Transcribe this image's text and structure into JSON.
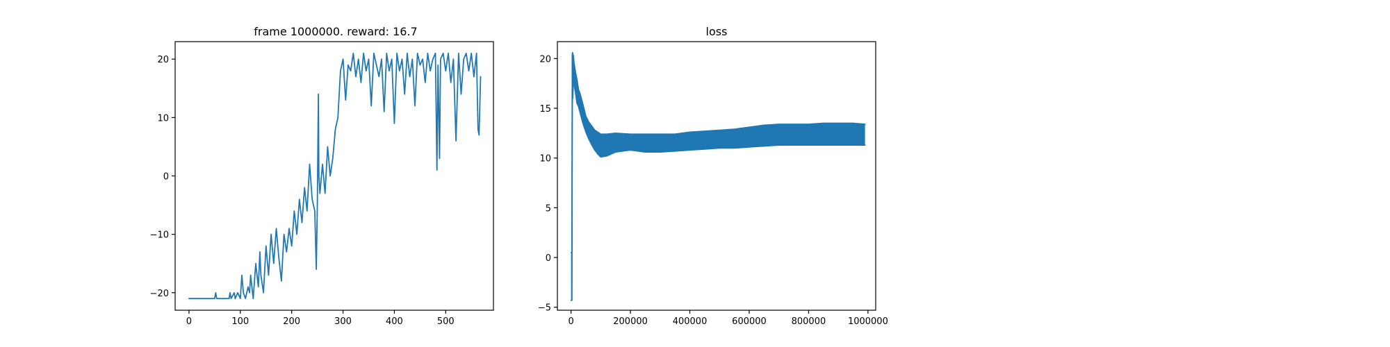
{
  "chart_data": [
    {
      "type": "line",
      "title": "frame 1000000. reward: 16.7",
      "xlabel": "",
      "ylabel": "",
      "xlim": [
        -27,
        593
      ],
      "ylim": [
        -23,
        23
      ],
      "xticks": [
        0,
        100,
        200,
        300,
        400,
        500
      ],
      "yticks": [
        -20,
        -10,
        0,
        10,
        20
      ],
      "grid": false,
      "color": "#1f77b4",
      "series": [
        {
          "x": [
            0,
            10,
            20,
            30,
            40,
            50,
            52,
            54,
            60,
            70,
            78,
            80,
            82,
            88,
            90,
            95,
            100,
            103,
            106,
            110,
            115,
            118,
            120,
            125,
            130,
            135,
            138,
            140,
            145,
            150,
            155,
            160,
            165,
            170,
            175,
            180,
            185,
            190,
            195,
            200,
            205,
            210,
            215,
            220,
            225,
            230,
            235,
            240,
            245,
            248,
            250,
            252,
            253,
            255,
            260,
            265,
            270,
            275,
            280,
            285,
            290,
            295,
            300,
            305,
            310,
            315,
            320,
            325,
            330,
            335,
            340,
            345,
            350,
            355,
            360,
            365,
            370,
            375,
            380,
            385,
            390,
            395,
            400,
            405,
            410,
            415,
            420,
            425,
            430,
            435,
            440,
            445,
            450,
            455,
            460,
            465,
            470,
            475,
            480,
            483,
            485,
            488,
            490,
            495,
            500,
            505,
            510,
            515,
            520,
            525,
            530,
            535,
            540,
            545,
            550,
            555,
            560,
            563,
            565,
            568
          ],
          "y": [
            -21,
            -21,
            -21,
            -21,
            -21,
            -21,
            -20,
            -21,
            -21,
            -21,
            -21,
            -20,
            -21,
            -20,
            -21,
            -20,
            -21,
            -17,
            -20,
            -21,
            -19,
            -20,
            -17,
            -21,
            -15,
            -19,
            -13,
            -17,
            -20,
            -12,
            -17,
            -10,
            -15,
            -9,
            -14,
            -18,
            -10,
            -13,
            -9,
            -12,
            -6,
            -10,
            -4,
            -8,
            -2,
            -6,
            2,
            -4,
            -6,
            -16,
            -5,
            14,
            0,
            -3,
            2,
            -3,
            5,
            0,
            3,
            8,
            10,
            18,
            20,
            13,
            19,
            18,
            21,
            17,
            20,
            16,
            21,
            18,
            20,
            12,
            21,
            19,
            17,
            20,
            11,
            21,
            18,
            20,
            9,
            21,
            18,
            20,
            14,
            21,
            17,
            20,
            12,
            21,
            19,
            20,
            16,
            21,
            18,
            20,
            21,
            1,
            19,
            3,
            20,
            21,
            18,
            21,
            16,
            20,
            6,
            21,
            14,
            20,
            21,
            18,
            21,
            17,
            21,
            8,
            7,
            17
          ]
        }
      ]
    },
    {
      "type": "line",
      "title": "loss",
      "xlabel": "",
      "ylabel": "",
      "xlim": [
        -46000,
        1026000
      ],
      "ylim": [
        -5.3,
        21.7
      ],
      "xticks": [
        0,
        200000,
        400000,
        600000,
        800000,
        1000000
      ],
      "yticks": [
        -5,
        0,
        5,
        10,
        15,
        20
      ],
      "grid": false,
      "color": "#1f77b4",
      "series": [
        {
          "x": [
            0,
            1500,
            3000,
            4000,
            5000,
            6000,
            8000,
            10000,
            15000,
            20000,
            25000,
            30000,
            40000,
            50000,
            60000,
            70000,
            80000,
            90000,
            100000,
            120000,
            150000,
            200000,
            250000,
            300000,
            350000,
            400000,
            450000,
            500000,
            550000,
            600000,
            650000,
            700000,
            750000,
            800000,
            850000,
            900000,
            950000,
            990000
          ],
          "y_low": [
            -4.3,
            -4.3,
            -4.3,
            15,
            16.5,
            16,
            18.5,
            17.5,
            16.5,
            15.5,
            15.2,
            14.6,
            13.5,
            12.6,
            11.9,
            11.3,
            10.8,
            10.4,
            10.1,
            10.2,
            10.6,
            10.8,
            10.6,
            10.6,
            10.7,
            10.8,
            10.9,
            11.0,
            11.0,
            11.1,
            11.2,
            11.3,
            11.3,
            11.3,
            11.3,
            11.3,
            11.3,
            11.3
          ],
          "y_high": [
            0.5,
            0.5,
            0.5,
            20.3,
            20.6,
            20.4,
            20.3,
            19.6,
            18.6,
            17.9,
            16.9,
            16.5,
            15.4,
            14.2,
            13.6,
            13.2,
            12.8,
            12.6,
            12.4,
            12.4,
            12.5,
            12.4,
            12.4,
            12.4,
            12.4,
            12.6,
            12.7,
            12.8,
            12.9,
            13.1,
            13.3,
            13.4,
            13.4,
            13.4,
            13.5,
            13.5,
            13.5,
            13.4
          ]
        }
      ]
    }
  ]
}
